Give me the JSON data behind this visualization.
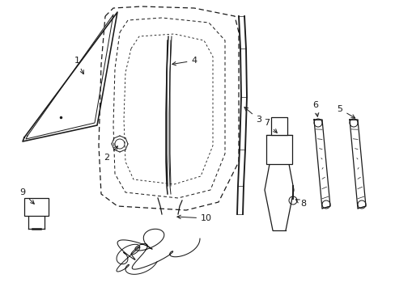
{
  "bg_color": "#ffffff",
  "line_color": "#1a1a1a",
  "lw": 0.9
}
